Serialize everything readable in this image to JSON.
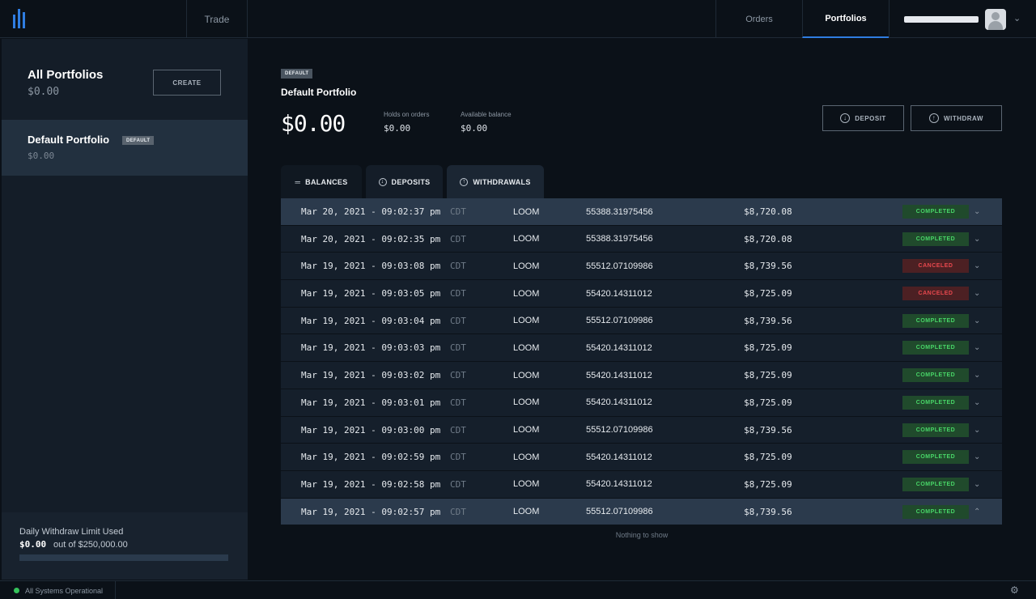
{
  "nav": {
    "trade": "Trade",
    "orders": "Orders",
    "portfolios": "Portfolios"
  },
  "sidebar": {
    "all_title": "All Portfolios",
    "all_value": "$0.00",
    "create_label": "CREATE",
    "portfolio": {
      "name": "Default Portfolio",
      "badge": "DEFAULT",
      "value": "$0.00"
    },
    "limit": {
      "title": "Daily Withdraw Limit Used",
      "used": "$0.00",
      "total": "out of $250,000.00",
      "fraction_used": 0.0
    }
  },
  "main": {
    "tag": "DEFAULT",
    "title": "Default Portfolio",
    "balance": "$0.00",
    "holds_label": "Holds on orders",
    "holds_value": "$0.00",
    "available_label": "Available balance",
    "available_value": "$0.00",
    "deposit_label": "DEPOSIT",
    "withdraw_label": "WITHDRAW",
    "tabs": {
      "balances": "BALANCES",
      "deposits": "DEPOSITS",
      "withdrawals": "WITHDRAWALS"
    },
    "rows": [
      {
        "date": "Mar 20, 2021 - 09:02:37 pm",
        "tz": "CDT",
        "asset": "LOOM",
        "amount": "55388.31975456",
        "usd": "$8,720.08",
        "status": "COMPLETED",
        "highlight": true,
        "chev": "⌄"
      },
      {
        "date": "Mar 20, 2021 - 09:02:35 pm",
        "tz": "CDT",
        "asset": "LOOM",
        "amount": "55388.31975456",
        "usd": "$8,720.08",
        "status": "COMPLETED",
        "highlight": false,
        "chev": "⌄"
      },
      {
        "date": "Mar 19, 2021 - 09:03:08 pm",
        "tz": "CDT",
        "asset": "LOOM",
        "amount": "55512.07109986",
        "usd": "$8,739.56",
        "status": "CANCELED",
        "highlight": false,
        "chev": "⌄"
      },
      {
        "date": "Mar 19, 2021 - 09:03:05 pm",
        "tz": "CDT",
        "asset": "LOOM",
        "amount": "55420.14311012",
        "usd": "$8,725.09",
        "status": "CANCELED",
        "highlight": false,
        "chev": "⌄"
      },
      {
        "date": "Mar 19, 2021 - 09:03:04 pm",
        "tz": "CDT",
        "asset": "LOOM",
        "amount": "55512.07109986",
        "usd": "$8,739.56",
        "status": "COMPLETED",
        "highlight": false,
        "chev": "⌄"
      },
      {
        "date": "Mar 19, 2021 - 09:03:03 pm",
        "tz": "CDT",
        "asset": "LOOM",
        "amount": "55420.14311012",
        "usd": "$8,725.09",
        "status": "COMPLETED",
        "highlight": false,
        "chev": "⌄"
      },
      {
        "date": "Mar 19, 2021 - 09:03:02 pm",
        "tz": "CDT",
        "asset": "LOOM",
        "amount": "55420.14311012",
        "usd": "$8,725.09",
        "status": "COMPLETED",
        "highlight": false,
        "chev": "⌄"
      },
      {
        "date": "Mar 19, 2021 - 09:03:01 pm",
        "tz": "CDT",
        "asset": "LOOM",
        "amount": "55420.14311012",
        "usd": "$8,725.09",
        "status": "COMPLETED",
        "highlight": false,
        "chev": "⌄"
      },
      {
        "date": "Mar 19, 2021 - 09:03:00 pm",
        "tz": "CDT",
        "asset": "LOOM",
        "amount": "55512.07109986",
        "usd": "$8,739.56",
        "status": "COMPLETED",
        "highlight": false,
        "chev": "⌄"
      },
      {
        "date": "Mar 19, 2021 - 09:02:59 pm",
        "tz": "CDT",
        "asset": "LOOM",
        "amount": "55420.14311012",
        "usd": "$8,725.09",
        "status": "COMPLETED",
        "highlight": false,
        "chev": "⌄"
      },
      {
        "date": "Mar 19, 2021 - 09:02:58 pm",
        "tz": "CDT",
        "asset": "LOOM",
        "amount": "55420.14311012",
        "usd": "$8,725.09",
        "status": "COMPLETED",
        "highlight": false,
        "chev": "⌄"
      },
      {
        "date": "Mar 19, 2021 - 09:02:57 pm",
        "tz": "CDT",
        "asset": "LOOM",
        "amount": "55512.07109986",
        "usd": "$8,739.56",
        "status": "COMPLETED",
        "highlight": true,
        "chev": "⌃"
      }
    ],
    "empty_text": "Nothing to show"
  },
  "status_bar": {
    "text": "All Systems Operational"
  },
  "colors": {
    "accent": "#2f7de1",
    "completed": "#48d668",
    "canceled": "#e8484e",
    "online": "#35c25a"
  }
}
